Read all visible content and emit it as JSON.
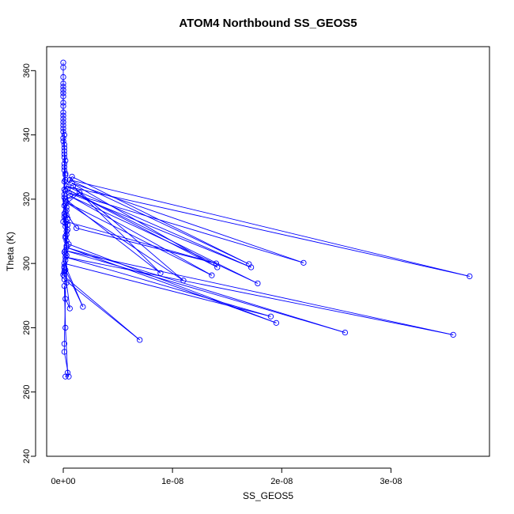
{
  "chart_data": {
    "type": "scatter",
    "title": "ATOM4 Northbound SS_GEOS5",
    "xlabel": "SS_GEOS5",
    "ylabel": "Theta (K)",
    "xlim": [
      0,
      3.75e-08
    ],
    "ylim": [
      240,
      365
    ],
    "x_ticks": [
      0,
      1e-08,
      2e-08,
      3e-08
    ],
    "x_tick_labels": [
      "0e+00",
      "1e-08",
      "2e-08",
      "3e-08"
    ],
    "y_ticks": [
      240,
      260,
      280,
      300,
      320,
      340,
      360
    ],
    "y_tick_labels": [
      "240",
      "260",
      "280",
      "300",
      "320",
      "340",
      "360"
    ],
    "series_color": "#0000ff",
    "connected": true,
    "points": [
      [
        0,
        362.5
      ],
      [
        0,
        361
      ],
      [
        0,
        358
      ],
      [
        0,
        355
      ],
      [
        0,
        352
      ],
      [
        0,
        350
      ],
      [
        0,
        347
      ],
      [
        0,
        344
      ],
      [
        0,
        341
      ],
      [
        1e-11,
        338
      ],
      [
        1e-10,
        335
      ],
      [
        2e-10,
        332
      ],
      [
        1e-10,
        329
      ],
      [
        2e-10,
        326
      ],
      [
        1e-10,
        323
      ],
      [
        8e-10,
        327
      ],
      [
        1.7e-08,
        299.8
      ],
      [
        6e-10,
        326
      ],
      [
        3.72e-08,
        296
      ],
      [
        3e-10,
        324
      ],
      [
        1.72e-08,
        298.8
      ],
      [
        5e-10,
        322
      ],
      [
        2.2e-08,
        300.2
      ],
      [
        8e-10,
        325
      ],
      [
        1.41e-08,
        298.8
      ],
      [
        4e-10,
        323
      ],
      [
        1.78e-08,
        293.8
      ],
      [
        6e-10,
        321
      ],
      [
        1.36e-08,
        296.3
      ],
      [
        3e-10,
        319
      ],
      [
        1.1e-08,
        294.7
      ],
      [
        9e-10,
        324
      ],
      [
        8.9e-09,
        297
      ],
      [
        2e-10,
        320
      ],
      [
        1.5e-09,
        322
      ],
      [
        1e-10,
        318
      ],
      [
        4e-10,
        314
      ],
      [
        2e-10,
        316
      ],
      [
        1.2e-09,
        311
      ],
      [
        1.4e-08,
        300
      ],
      [
        3e-10,
        313
      ],
      [
        4e-10,
        312
      ],
      [
        3e-10,
        310
      ],
      [
        2e-10,
        308
      ],
      [
        5e-10,
        306
      ],
      [
        1.95e-08,
        281.5
      ],
      [
        3e-10,
        305
      ],
      [
        2.58e-08,
        278.5
      ],
      [
        2e-10,
        304
      ],
      [
        3.57e-08,
        277.8
      ],
      [
        2e-10,
        302
      ],
      [
        1.9e-08,
        283.5
      ],
      [
        1e-10,
        300
      ],
      [
        1.8e-09,
        286.5
      ],
      [
        2e-10,
        298
      ],
      [
        1e-10,
        297
      ],
      [
        1e-10,
        296
      ],
      [
        7e-09,
        276.2
      ],
      [
        1e-10,
        295
      ],
      [
        3e-10,
        294
      ],
      [
        6e-10,
        286
      ],
      [
        2e-10,
        289
      ],
      [
        1e-10,
        293
      ],
      [
        2e-10,
        280
      ],
      [
        4e-10,
        266
      ],
      [
        2e-10,
        264.8
      ],
      [
        5e-10,
        264.8
      ],
      [
        1e-10,
        272.5
      ],
      [
        1e-10,
        275
      ],
      [
        3e-10,
        305.5
      ],
      [
        2e-10,
        318.5
      ],
      [
        3e-10,
        317.5
      ],
      [
        1e-10,
        315.5
      ],
      [
        0,
        313
      ],
      [
        1e-10,
        330
      ],
      [
        1e-10,
        331
      ],
      [
        1e-10,
        333
      ],
      [
        1e-10,
        336
      ],
      [
        1e-10,
        340
      ],
      [
        0,
        342
      ],
      [
        0,
        343
      ],
      [
        0,
        345
      ],
      [
        0,
        349
      ],
      [
        0,
        353
      ],
      [
        0,
        356
      ],
      [
        0,
        354
      ],
      [
        0,
        346
      ],
      [
        0,
        339
      ],
      [
        1e-10,
        337
      ],
      [
        1e-10,
        334
      ],
      [
        2e-10,
        328
      ],
      [
        2e-10,
        327.5
      ],
      [
        1e-10,
        325.5
      ],
      [
        2e-10,
        322.5
      ],
      [
        1e-10,
        321.5
      ],
      [
        1e-10,
        320.5
      ],
      [
        2e-10,
        319.5
      ],
      [
        3e-10,
        316.5
      ],
      [
        3e-10,
        315
      ],
      [
        2e-10,
        312.5
      ],
      [
        4e-10,
        310.5
      ],
      [
        3e-10,
        309
      ],
      [
        3e-10,
        307
      ],
      [
        2e-10,
        303
      ],
      [
        2e-10,
        301
      ],
      [
        1e-10,
        299
      ],
      [
        1e-10,
        298.5
      ],
      [
        1e-10,
        297.5
      ],
      [
        0,
        296.5
      ],
      [
        1e-10,
        303.5
      ],
      [
        2e-10,
        308.5
      ],
      [
        2e-10,
        311.5
      ],
      [
        1e-10,
        314.5
      ],
      [
        3e-10,
        302.5
      ]
    ]
  }
}
